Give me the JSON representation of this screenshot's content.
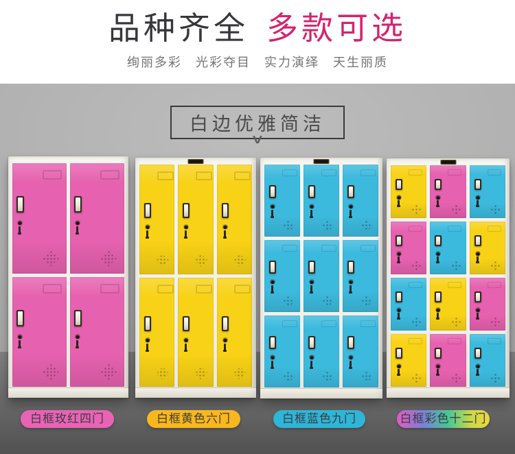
{
  "header": {
    "title_primary": "品种齐全",
    "title_accent": "多款可选",
    "subtitle": "绚丽多彩　光彩夺目　实力演绎　天生丽质",
    "accent_color": "#d5236e"
  },
  "section": {
    "title": "白边优雅简洁",
    "chevron_icon": "∨"
  },
  "colors": {
    "pink": "#e661af",
    "yellow": "#f8d216",
    "blue": "#3cbade",
    "frame_white": "#f3f1ea",
    "pill_pink": "#e863b5",
    "pill_yellow": "#f8b71d",
    "pill_blue": "#2eb5d8"
  },
  "lockers": [
    {
      "label": "白框玫红四门",
      "cols": 2,
      "rows": 2,
      "brand_plate": false,
      "doors": [
        "pink",
        "pink",
        "pink",
        "pink"
      ]
    },
    {
      "label": "白框黄色六门",
      "cols": 3,
      "rows": 2,
      "brand_plate": true,
      "doors": [
        "yellow",
        "yellow",
        "yellow",
        "yellow",
        "yellow",
        "yellow"
      ]
    },
    {
      "label": "白框蓝色九门",
      "cols": 3,
      "rows": 3,
      "brand_plate": true,
      "doors": [
        "blue",
        "blue",
        "blue",
        "blue",
        "blue",
        "blue",
        "blue",
        "blue",
        "blue"
      ]
    },
    {
      "label": "白框彩色十二门",
      "cols": 3,
      "rows": 4,
      "brand_plate": true,
      "doors": [
        "yellow",
        "pink",
        "blue",
        "pink",
        "blue",
        "yellow",
        "blue",
        "yellow",
        "pink",
        "yellow",
        "pink",
        "blue"
      ]
    }
  ]
}
